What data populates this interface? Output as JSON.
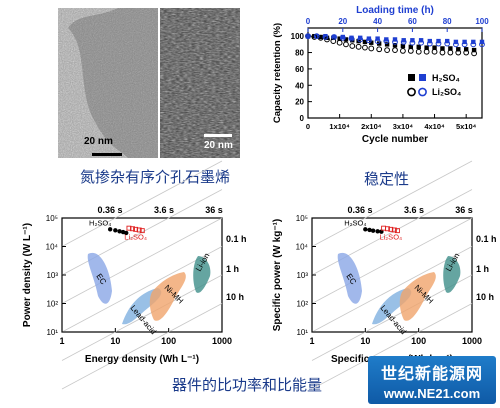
{
  "tem_images": {
    "left": {
      "scale_bar": "20 nm"
    },
    "right": {
      "scale_bar": "20 nm"
    }
  },
  "captions": {
    "tem": "氮掺杂有序介孔石墨烯",
    "stability": "稳定性",
    "ragone": "器件的比功率和比能量"
  },
  "watermark": {
    "line1": "世纪新能源网",
    "line2": "www.NE21.com"
  },
  "chart_data": [
    {
      "type": "scatter",
      "xlabel": "Cycle number",
      "ylabel": "Capacity retention (%)",
      "x2label": "Loading time (h)",
      "xlim": [
        0,
        55000
      ],
      "ylim": [
        0,
        110
      ],
      "x2lim": [
        0,
        100
      ],
      "xticks": [
        "0",
        "1x10⁴",
        "2x10⁴",
        "3x10⁴",
        "4x10⁴",
        "5x10⁴"
      ],
      "yticks": [
        "0",
        "20",
        "40",
        "60",
        "80",
        "100"
      ],
      "x2ticks": [
        "0",
        "20",
        "40",
        "60",
        "80",
        "100"
      ],
      "legend_position": "center-right",
      "series": [
        {
          "name": "H2SO4",
          "axis": "x",
          "marker": "filled-square",
          "color": "#000000",
          "x": [
            0,
            2000,
            4000,
            6000,
            8000,
            10000,
            12000,
            14000,
            16000,
            18000,
            20000,
            22500,
            25000,
            27500,
            30000,
            32500,
            35000,
            37500,
            40000,
            42500,
            45000,
            47500,
            50000,
            52500
          ],
          "y": [
            100,
            100,
            99,
            98,
            98,
            97,
            96,
            95,
            94,
            93,
            92,
            91,
            90,
            89,
            88,
            87,
            87,
            86,
            86,
            85,
            85,
            84,
            84,
            83
          ]
        },
        {
          "name": "H2SO4",
          "axis": "x2",
          "marker": "filled-square",
          "color": "#1f3fd1",
          "x": [
            0,
            5,
            10,
            15,
            20,
            25,
            30,
            35,
            40,
            45,
            50,
            55,
            60,
            65,
            70,
            75,
            80,
            85,
            90,
            95,
            100
          ],
          "y": [
            100,
            100,
            100,
            99,
            99,
            98,
            98,
            97,
            97,
            96,
            96,
            95,
            95,
            95,
            94,
            94,
            94,
            93,
            93,
            93,
            93
          ]
        },
        {
          "name": "Li2SO4",
          "axis": "x",
          "marker": "open-circle",
          "color": "#000000",
          "x": [
            0,
            2000,
            4000,
            6000,
            8000,
            10000,
            12000,
            14000,
            16000,
            18000,
            20000,
            22500,
            25000,
            27500,
            30000,
            32500,
            35000,
            37500,
            40000,
            42500,
            45000,
            47500,
            50000,
            52500
          ],
          "y": [
            100,
            99,
            98,
            96,
            94,
            92,
            90,
            88,
            87,
            86,
            85,
            84,
            83,
            83,
            82,
            82,
            81,
            81,
            81,
            80,
            80,
            80,
            80,
            79
          ]
        },
        {
          "name": "Li2SO4",
          "axis": "x2",
          "marker": "open-circle",
          "color": "#1f3fd1",
          "x": [
            0,
            5,
            10,
            15,
            20,
            25,
            30,
            35,
            40,
            45,
            50,
            55,
            60,
            65,
            70,
            75,
            80,
            85,
            90,
            95,
            100
          ],
          "y": [
            100,
            100,
            99,
            99,
            98,
            97,
            96,
            95,
            94,
            94,
            93,
            93,
            92,
            92,
            91,
            91,
            91,
            90,
            90,
            90,
            90
          ]
        }
      ],
      "legend": [
        {
          "label": "H₂SO₄",
          "markers": [
            "filled-square-black",
            "filled-square-blue"
          ]
        },
        {
          "label": "Li₂SO₄",
          "markers": [
            "open-circle-black",
            "open-circle-blue"
          ]
        }
      ]
    },
    {
      "type": "ragone",
      "xlabel": "Energy density (Wh L⁻¹)",
      "ylabel": "Power density (W L⁻¹)",
      "x_scale": "log",
      "y_scale": "log",
      "xlim": [
        1,
        1000
      ],
      "ylim": [
        10,
        100000
      ],
      "xticks": [
        "1",
        "10",
        "100",
        "1000"
      ],
      "yticks": [
        "10¹",
        "10²",
        "10³",
        "10⁴",
        "10⁵"
      ],
      "time_lines_top": [
        "0.36 s",
        "3.6 s",
        "36 s"
      ],
      "time_lines_right": [
        "0.1 h",
        "1 h",
        "10 h"
      ],
      "regions": [
        {
          "label": "EC",
          "color": "#8aa6e6"
        },
        {
          "label": "Lead-acid",
          "color": "#7fb0e0"
        },
        {
          "label": "Ni-MH",
          "color": "#f0a46b"
        },
        {
          "label": "Li-ion",
          "color": "#3f8f8a"
        }
      ],
      "series": [
        {
          "name": "H2SO4",
          "label": "H₂SO₄",
          "marker": "filled",
          "color": "#000000",
          "x": [
            8,
            10,
            12,
            14,
            16
          ],
          "y": [
            40000,
            37000,
            34000,
            32000,
            30000
          ]
        },
        {
          "name": "Li2SO4",
          "label": "Li₂SO₄",
          "marker": "open",
          "color": "#e02020",
          "x": [
            18,
            21,
            24,
            28,
            32
          ],
          "y": [
            44000,
            42000,
            40000,
            38000,
            36000
          ]
        }
      ]
    },
    {
      "type": "ragone",
      "xlabel": "Specific energy (Wh kg⁻¹)",
      "ylabel": "Specific power (W kg⁻¹)",
      "x_scale": "log",
      "y_scale": "log",
      "xlim": [
        1,
        1000
      ],
      "ylim": [
        10,
        100000
      ],
      "xticks": [
        "1",
        "10",
        "100",
        "1000"
      ],
      "yticks": [
        "10¹",
        "10²",
        "10³",
        "10⁴",
        "10⁵"
      ],
      "time_lines_top": [
        "0.36 s",
        "3.6 s",
        "36 s"
      ],
      "time_lines_right": [
        "0.1 h",
        "1 h",
        "10 h"
      ],
      "regions": [
        {
          "label": "EC",
          "color": "#8aa6e6"
        },
        {
          "label": "Lead-acid",
          "color": "#7fb0e0"
        },
        {
          "label": "Ni-MH",
          "color": "#f0a46b"
        },
        {
          "label": "Li-ion",
          "color": "#3f8f8a"
        }
      ],
      "series": [
        {
          "name": "H2SO4",
          "label": "H₂SO₄",
          "marker": "filled",
          "color": "#000000",
          "x": [
            10,
            12,
            14,
            17,
            20
          ],
          "y": [
            40000,
            38000,
            36000,
            34000,
            33000
          ]
        },
        {
          "name": "Li2SO4",
          "label": "Li₂SO₄",
          "marker": "open",
          "color": "#e02020",
          "x": [
            22,
            26,
            30,
            35,
            40
          ],
          "y": [
            44000,
            42000,
            40000,
            38000,
            36000
          ]
        }
      ]
    }
  ]
}
